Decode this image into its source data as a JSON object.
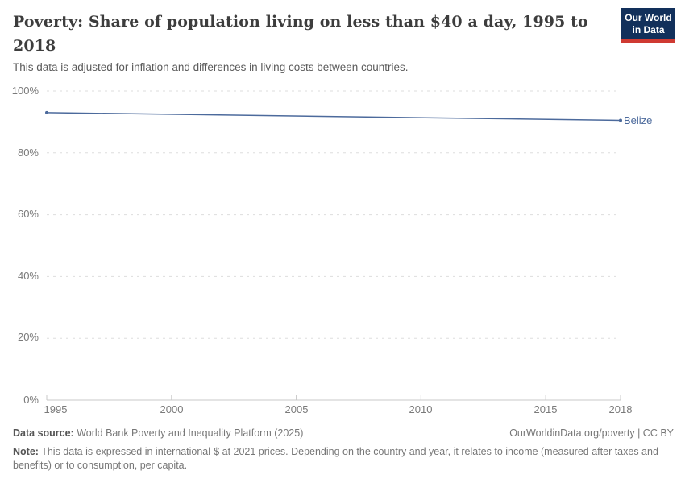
{
  "header": {
    "title": "Poverty: Share of population living on less than $40 a day, 1995 to 2018",
    "title_lines": [
      "Poverty: Share of population living on less than $40 a day, 1995 to",
      "2018"
    ],
    "subtitle": "This data is adjusted for inflation and differences in living costs between countries.",
    "logo": {
      "line1": "Our World",
      "line2": "in Data"
    }
  },
  "chart_data": {
    "type": "line",
    "title": "Poverty: Share of population living on less than $40 a day, 1995 to 2018",
    "xlabel": "",
    "ylabel": "",
    "xlim": [
      1995,
      2018
    ],
    "ylim": [
      0,
      100
    ],
    "grid": "horizontal-dashed",
    "legend_position": "end-of-line",
    "xticks": [
      1995,
      2000,
      2005,
      2010,
      2015,
      2018
    ],
    "xtick_labels": [
      "1995",
      "2000",
      "2005",
      "2010",
      "2015",
      "2018"
    ],
    "yticks": [
      0,
      20,
      40,
      60,
      80,
      100
    ],
    "ytick_labels": [
      "0%",
      "20%",
      "40%",
      "60%",
      "80%",
      "100%"
    ],
    "series": [
      {
        "name": "Belize",
        "color": "#4c6a9c",
        "x": [
          1995,
          2018
        ],
        "values": [
          93,
          90.5
        ]
      }
    ],
    "end_label": "Belize"
  },
  "footer": {
    "datasource_label": "Data source:",
    "datasource": " World Bank Poverty and Inequality Platform (2025)",
    "rights": "OurWorldinData.org/poverty | CC BY",
    "note_label": "Note:",
    "note": " This data is expressed in international-$ at 2021 prices. Depending on the country and year, it relates to income (measured after taxes and benefits) or to consumption, per capita."
  },
  "colors": {
    "line": "#4c6a9c",
    "series_label": "#4c6a9c",
    "grid": "#dddddd",
    "axis": "#c8c8c8",
    "logo_bg": "#12305b",
    "logo_accent": "#cf3a32",
    "title_text": "#3d3d3d",
    "tick_text": "#7a7a7a"
  }
}
